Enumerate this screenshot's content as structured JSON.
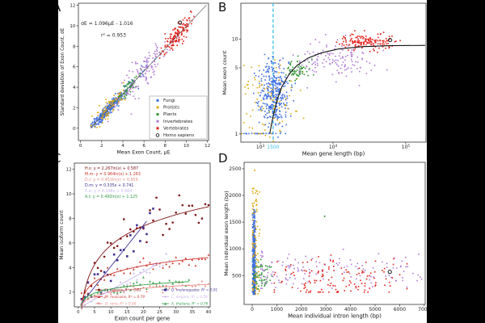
{
  "figure": {
    "panel_labels": [
      "A",
      "B",
      "C",
      "D"
    ],
    "background": "#000000",
    "paper_color": "#ffffff"
  },
  "palette": {
    "fungi": "#3e6ede",
    "protists": "#e0a912",
    "plants": "#2f9632",
    "invertebrates": "#b07bd5",
    "vertebrates": "#e2211c",
    "homo_sapiens_marker": "#000000",
    "cyan_guide": "#35bde8"
  },
  "chart_data": [
    {
      "panel": "A",
      "type": "scatter",
      "xlabel": "Mean Exon Count, μE",
      "ylabel": "Standard deviation of Exon Count, σE",
      "xlim": [
        -0.2,
        12.1
      ],
      "ylim": [
        -1.2,
        12.2
      ],
      "xticks": [
        0,
        2,
        4,
        6,
        8,
        10,
        12
      ],
      "yticks": [
        0,
        2,
        4,
        6,
        8,
        10,
        12
      ],
      "annotations": [
        {
          "text": "σE = 1.096μE - 1.016",
          "fx": 0.22,
          "fy": 0.16,
          "size": 6.0,
          "color": "#222222",
          "anchor": "middle"
        },
        {
          "text": "r² = 0.953",
          "fx": 0.27,
          "fy": 0.245,
          "size": 6.0,
          "color": "#222222",
          "anchor": "middle"
        }
      ],
      "lines": [
        {
          "kind": "linear",
          "slope": 1.096,
          "intercept": -1.016,
          "xrange": [
            0.95,
            11.9
          ],
          "color": "#666666",
          "width": 0.7
        }
      ],
      "series": [
        {
          "name": "Fungi",
          "color": "#3e6ede",
          "gen": "linefit",
          "n": 300,
          "xc": 2.45,
          "xs": 0.8,
          "xclip": [
            1,
            6.8
          ],
          "yn": 0.27,
          "seed": 11
        },
        {
          "name": "Fungi",
          "color": "#3e6ede",
          "gen": "linefit",
          "n": 45,
          "xc": 4.8,
          "xs": 1.1,
          "xclip": [
            1.2,
            7.2
          ],
          "yn": 0.4,
          "seed": 12
        },
        {
          "name": "Protists",
          "color": "#e0a912",
          "gen": "linefit",
          "n": 85,
          "xc": 2.9,
          "xs": 0.8,
          "xclip": [
            1,
            5.5
          ],
          "yn": 0.5,
          "seed": 13
        },
        {
          "name": "Plants",
          "color": "#2f9632",
          "gen": "linefit",
          "n": 55,
          "xc": 4.6,
          "xs": 0.55,
          "xclip": [
            3.2,
            6
          ],
          "yn": 0.4,
          "seed": 14
        },
        {
          "name": "Invertebrates",
          "color": "#b07bd5",
          "gen": "linefit",
          "n": 125,
          "xc": 5.9,
          "xs": 1.35,
          "xclip": [
            2.6,
            9.6
          ],
          "yn": 0.95,
          "seed": 15
        },
        {
          "name": "Vertebrates",
          "color": "#e2211c",
          "gen": "linefit",
          "n": 145,
          "xc": 9.2,
          "xs": 0.7,
          "xclip": [
            6.8,
            11.4
          ],
          "yn": 0.5,
          "seed": 16
        }
      ],
      "highlight": {
        "label": "Homo sapiens",
        "x": 9.4,
        "y": 10.3
      },
      "legend": {
        "position": "lower right",
        "items": [
          {
            "label": "Fungi",
            "color": "#3e6ede",
            "marker": "square"
          },
          {
            "label": "Protists",
            "color": "#e0a912",
            "marker": "square"
          },
          {
            "label": "Plants",
            "color": "#2f9632",
            "marker": "square"
          },
          {
            "label": "Invertebrates",
            "color": "#b07bd5",
            "marker": "square"
          },
          {
            "label": "Vertebrates",
            "color": "#e2211c",
            "marker": "square"
          },
          {
            "label": "Homo sapiens",
            "color": "#000000",
            "marker": "open-circle"
          }
        ]
      }
    },
    {
      "panel": "B",
      "type": "scatter",
      "xlog": true,
      "ylog": true,
      "xlabel": "Mean gene length (bp)",
      "ylabel": "Mean exon count",
      "xlim": [
        540,
        190000
      ],
      "ylim": [
        0.82,
        24
      ],
      "xticks": [
        {
          "v": 1000,
          "label": "10^3"
        },
        {
          "v": 1500,
          "label": "1500",
          "color": "#35bde8",
          "notick": true
        },
        {
          "v": 10000,
          "label": "10^4"
        },
        {
          "v": 100000,
          "label": "10^5"
        }
      ],
      "yticks": [
        {
          "v": 1,
          "label": "1"
        },
        {
          "v": 5,
          "label": "5"
        },
        {
          "v": 10,
          "label": "10"
        }
      ],
      "vlines": [
        {
          "x": 1500,
          "color": "#35bde8",
          "dash": "4,2.6",
          "width": 1.3
        }
      ],
      "curve_points": [
        [
          1350,
          1.02
        ],
        [
          1500,
          1.55
        ],
        [
          1700,
          2.3
        ],
        [
          2000,
          3.2
        ],
        [
          2500,
          4.3
        ],
        [
          3200,
          5.3
        ],
        [
          4500,
          6.3
        ],
        [
          7000,
          7.2
        ],
        [
          12000,
          7.9
        ],
        [
          25000,
          8.35
        ],
        [
          60000,
          8.55
        ],
        [
          185000,
          8.62
        ]
      ],
      "curve_color": "#111111",
      "series": [
        {
          "name": "Fungi",
          "color": "#3e6ede",
          "gen": "loggauss",
          "n": 340,
          "lx": [
            3.19,
            0.1
          ],
          "ly": [
            0.44,
            0.17
          ],
          "seed": 7
        },
        {
          "name": "Fungi",
          "color": "#3e6ede",
          "gen": "loggauss",
          "n": 26,
          "lx": [
            3.02,
            0.16
          ],
          "ly": [
            0.004,
            0.001
          ],
          "seed": 71
        },
        {
          "name": "Protists",
          "color": "#e0a912",
          "gen": "loggauss",
          "n": 95,
          "lx": [
            3.12,
            0.25
          ],
          "ly": [
            0.34,
            0.22
          ],
          "seed": 8
        },
        {
          "name": "Protists",
          "color": "#e0a912",
          "gen": "loggauss",
          "n": 8,
          "lx": [
            2.95,
            0.2
          ],
          "ly": [
            0.004,
            0.001
          ],
          "seed": 81
        },
        {
          "name": "Plants",
          "color": "#2f9632",
          "gen": "loggauss",
          "n": 60,
          "lx": [
            3.5,
            0.1
          ],
          "ly": [
            0.67,
            0.05
          ],
          "seed": 9
        },
        {
          "name": "Invertebrates",
          "color": "#b07bd5",
          "gen": "loggauss",
          "n": 135,
          "lx": [
            4.03,
            0.3
          ],
          "ly": [
            0.78,
            0.09
          ],
          "seed": 10
        },
        {
          "name": "Vertebrates",
          "color": "#e2211c",
          "gen": "loggauss",
          "n": 150,
          "lx": [
            4.5,
            0.18
          ],
          "ly": [
            0.975,
            0.04
          ],
          "seed": 12
        }
      ],
      "highlight": {
        "label": "Homo sapiens",
        "x": 61000,
        "y": 9.8
      }
    },
    {
      "panel": "C",
      "type": "scatter",
      "xlabel": "Exon count per gene",
      "ylabel": "Mean isoform count",
      "xlim": [
        -1.2,
        40.5
      ],
      "ylim": [
        0.8,
        12.5
      ],
      "xticks": [
        0,
        5,
        10,
        15,
        20,
        25,
        30,
        35,
        40
      ],
      "yticks": [
        2,
        4,
        6,
        8,
        10,
        12
      ],
      "equations": [
        {
          "text": "H.s: y = 2.267ln(x) + 0.587",
          "color": "#7e1516"
        },
        {
          "text": "M.m: y = 0.964ln(x) + 1.263",
          "color": "#cb3227"
        },
        {
          "text": "D.r: y = 0.452ln(x) + 0.959",
          "color": "#e98d84"
        },
        {
          "text": "D.m: y = 0.335x + 0.741",
          "color": "#3f2d8f"
        },
        {
          "text": "C.e: y = 0.148x + 0.684",
          "color": "#c9b6ec"
        },
        {
          "text": "A.t: y = 0.490ln(x) + 1.125",
          "color": "#2f9e44"
        }
      ],
      "series": [
        {
          "name": "H. sapiens",
          "legend_label": "H. sapiens, R² = 0.83",
          "color": "#7e1516",
          "marker": "circle",
          "fit": {
            "kind": "log",
            "a": 2.267,
            "b": 0.587
          },
          "xrange": [
            1,
            40
          ],
          "fitrange": [
            1,
            40
          ],
          "yn": 0.85,
          "seed": 101
        },
        {
          "name": "M. musculus",
          "legend_label": "M. musculus, R² = 0.79",
          "color": "#cb3227",
          "marker": "triangle",
          "fit": {
            "kind": "log",
            "a": 0.964,
            "b": 1.263
          },
          "xrange": [
            1,
            40
          ],
          "fitrange": [
            1,
            40
          ],
          "yn": 0.3,
          "seed": 102
        },
        {
          "name": "D. rerio",
          "legend_label": "D. rerio, R² = 0.90",
          "color": "#e98d84",
          "marker": "diamond",
          "fit": {
            "kind": "log",
            "a": 0.452,
            "b": 0.959
          },
          "xrange": [
            1,
            40
          ],
          "fitrange": [
            1,
            40
          ],
          "yn": 0.18,
          "seed": 103
        },
        {
          "name": "D. melanogaster",
          "legend_label": "D. melanogaster, R² = 0.91",
          "color": "#3f2d8f",
          "marker": "square",
          "fit": {
            "kind": "lin",
            "a": 0.335,
            "b": 0.741
          },
          "xrange": [
            1,
            23
          ],
          "fitrange": [
            1,
            21
          ],
          "yn": 0.65,
          "seed": 104
        },
        {
          "name": "C. elegans",
          "legend_label": "C. elegans, R² = 0.58",
          "color": "#c9b6ec",
          "marker": "diamond",
          "fit": {
            "kind": "lin",
            "a": 0.148,
            "b": 0.684
          },
          "xrange": [
            1,
            28
          ],
          "fitrange": [
            1,
            25
          ],
          "yn": 0.3,
          "seed": 105
        },
        {
          "name": "A. thaliana",
          "legend_label": "A. thaliana, R² = 0.76",
          "color": "#2f9e44",
          "marker": "triangle",
          "fit": {
            "kind": "log",
            "a": 0.49,
            "b": 1.125
          },
          "xrange": [
            1,
            34
          ],
          "fitrange": [
            1,
            34
          ],
          "yn": 0.22,
          "seed": 106
        }
      ],
      "legend_columns": [
        [
          0,
          1,
          2
        ],
        [
          3,
          4,
          5
        ]
      ]
    },
    {
      "panel": "D",
      "type": "scatter",
      "xlabel": "Mean individual intron length (bp)",
      "ylabel": "Mean individual exon length (bp)",
      "xlim": [
        -330,
        7040
      ],
      "ylim": [
        -40,
        2620
      ],
      "xticks": [
        0,
        1000,
        2000,
        3000,
        4000,
        5000,
        6000,
        7000
      ],
      "yticks": [
        500,
        1000,
        1500,
        2000,
        2500
      ],
      "series": [
        {
          "name": "Fungi",
          "color": "#3e6ede",
          "gen": "blob",
          "n": 380,
          "x": [
            70,
            35
          ],
          "y": {
            "u": [
              150,
              1750,
              1.3
            ]
          },
          "xclip": [
            15,
            160
          ],
          "yclip": [
            140,
            1760
          ],
          "seed": 201
        },
        {
          "name": "Protists",
          "color": "#e0a912",
          "gen": "blob",
          "n": 85,
          "x": [
            120,
            90
          ],
          "y": {
            "u": [
              150,
              2150,
              1.4
            ]
          },
          "xclip": [
            15,
            320
          ],
          "yclip": [
            150,
            2200
          ],
          "seed": 202
        },
        {
          "name": "Plants",
          "color": "#2f9632",
          "gen": "blob",
          "n": 55,
          "x": [
            330,
            180
          ],
          "y": [
            480,
            130
          ],
          "xclip": [
            70,
            800
          ],
          "yclip": [
            250,
            800
          ],
          "seed": 203
        },
        {
          "name": "Invertebrates",
          "color": "#b07bd5",
          "gen": "blob",
          "n": 135,
          "x": {
            "u": [
              350,
              6900,
              1.8
            ]
          },
          "y": [
            570,
            170
          ],
          "xclip": [
            350,
            6900
          ],
          "yclip": [
            260,
            1000
          ],
          "seed": 204
        },
        {
          "name": "Vertebrates",
          "color": "#e2211c",
          "gen": "blob",
          "n": 135,
          "x": [
            3400,
            1400
          ],
          "y": [
            430,
            190
          ],
          "xclip": [
            900,
            6300
          ],
          "yclip": [
            190,
            1020
          ],
          "seed": 205
        }
      ],
      "extra_points": [
        {
          "color": "#e0a912",
          "pts": [
            [
              95,
              2470
            ],
            [
              60,
              2130
            ],
            [
              140,
              1900
            ]
          ]
        },
        {
          "color": "#2f9632",
          "pts": [
            [
              2950,
              1610
            ]
          ]
        }
      ],
      "highlight": {
        "label": "Homo sapiens",
        "x": 5600,
        "y": 570
      }
    }
  ]
}
